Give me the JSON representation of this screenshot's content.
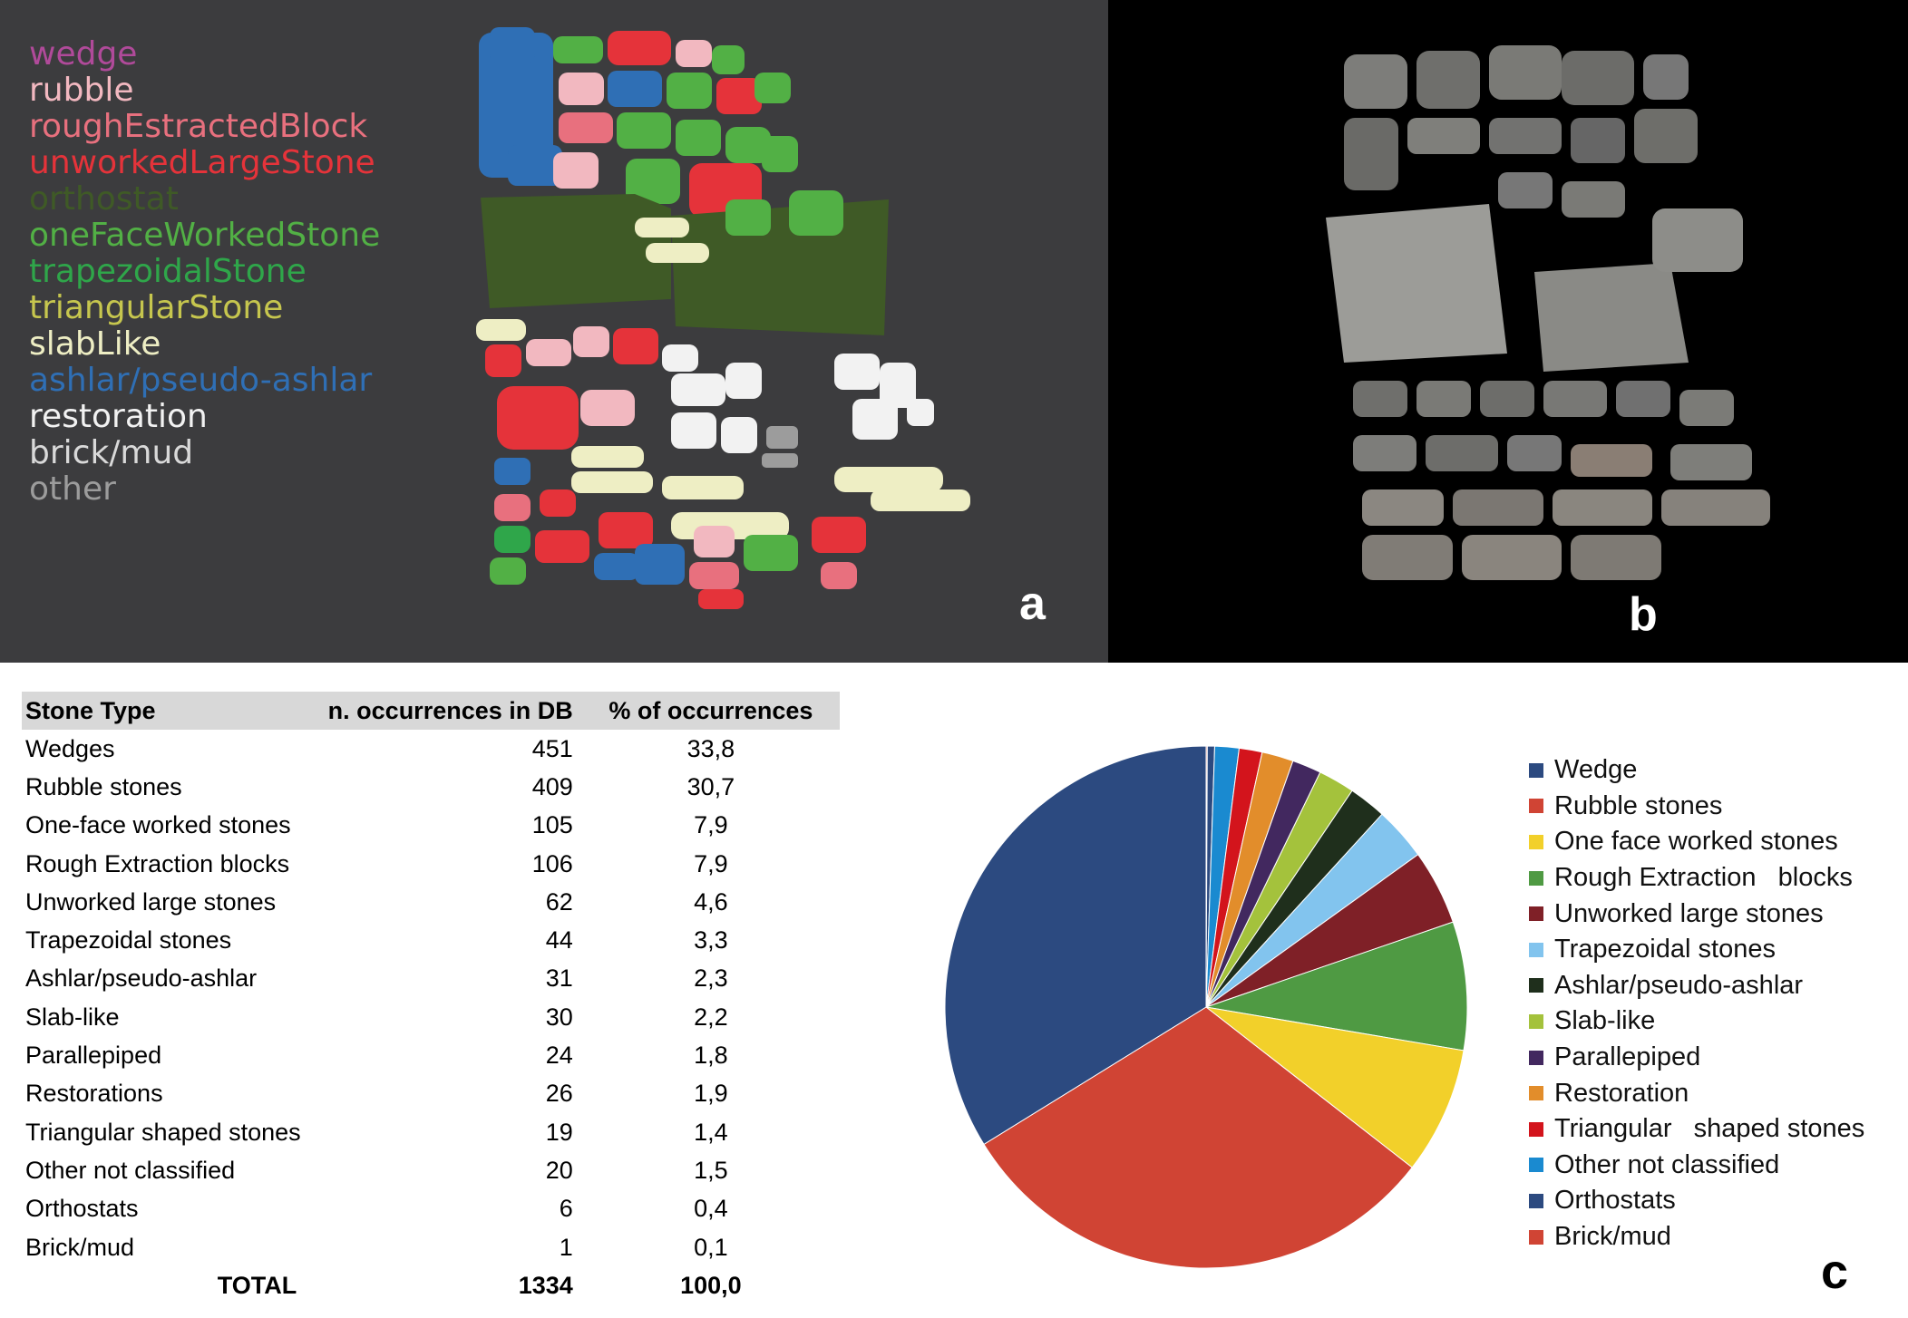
{
  "panels": {
    "a": "a",
    "b": "b",
    "c": "c"
  },
  "stone_legend": [
    {
      "label": "wedge",
      "color": "#b04a9a"
    },
    {
      "label": "rubble",
      "color": "#f2b8c0"
    },
    {
      "label": "roughEstractedBlock",
      "color": "#e8707e"
    },
    {
      "label": "unworkedLargeStone",
      "color": "#e5333a"
    },
    {
      "label": "orthostat",
      "color": "#3f5a26"
    },
    {
      "label": "oneFaceWorkedStone",
      "color": "#52b045"
    },
    {
      "label": "trapezoidalStone",
      "color": "#2fa64a"
    },
    {
      "label": "triangularStone",
      "color": "#c6c64e"
    },
    {
      "label": "slabLike",
      "color": "#eeeec4"
    },
    {
      "label": "ashlar/pseudo-ashlar",
      "color": "#2f6fb5"
    },
    {
      "label": "restoration",
      "color": "#f2f2f2"
    },
    {
      "label": "brick/mud",
      "color": "#d9d9d9"
    },
    {
      "label": "other",
      "color": "#9c9c9c"
    }
  ],
  "table": {
    "headers": [
      "Stone Type",
      "n. occurrences in DB",
      "% of occurrences"
    ],
    "rows": [
      [
        "Wedges",
        "451",
        "33,8"
      ],
      [
        "Rubble stones",
        "409",
        "30,7"
      ],
      [
        "One-face worked stones",
        "105",
        "7,9"
      ],
      [
        "Rough Extraction blocks",
        "106",
        "7,9"
      ],
      [
        "Unworked large stones",
        "62",
        "4,6"
      ],
      [
        "Trapezoidal stones",
        "44",
        "3,3"
      ],
      [
        "Ashlar/pseudo-ashlar",
        "31",
        "2,3"
      ],
      [
        "Slab-like",
        "30",
        "2,2"
      ],
      [
        "Parallepiped",
        "24",
        "1,8"
      ],
      [
        "Restorations",
        "26",
        "1,9"
      ],
      [
        "Triangular shaped stones",
        "19",
        "1,4"
      ],
      [
        "Other not classified",
        "20",
        "1,5"
      ],
      [
        "Orthostats",
        "6",
        "0,4"
      ],
      [
        "Brick/mud",
        "1",
        "0,1"
      ]
    ],
    "total": [
      "TOTAL",
      "1334",
      "100,0"
    ]
  },
  "chart_data": {
    "type": "pie",
    "title": "",
    "legend_position": "right",
    "categories": [
      "Wedge",
      "Rubble stones",
      "One face worked stones",
      "Rough Extraction blocks",
      "Unworked large stones",
      "Trapezoidal stones",
      "Ashlar/pseudo-ashlar",
      "Slab-like",
      "Parallepiped",
      "Restoration",
      "Triangular shaped stones",
      "Other not classified",
      "Orthostats",
      "Brick/mud"
    ],
    "legend_labels": [
      "Wedge",
      "Rubble stones",
      "One face worked stones",
      "Rough Extraction   blocks",
      "Unworked large stones",
      "Trapezoidal stones",
      "Ashlar/pseudo-ashlar",
      "Slab-like",
      "Parallepiped",
      "Restoration",
      "Triangular   shaped stones",
      "Other not classified",
      "Orthostats",
      "Brick/mud"
    ],
    "values": [
      451,
      409,
      105,
      106,
      62,
      44,
      31,
      30,
      24,
      26,
      19,
      20,
      6,
      1
    ],
    "colors": [
      "#2c4a80",
      "#d04434",
      "#f2d02a",
      "#4f9a43",
      "#7f2027",
      "#82c4ee",
      "#1f2f1c",
      "#a4c23c",
      "#42285f",
      "#e28d2b",
      "#d3141c",
      "#1a8ad0",
      "#2c4a80",
      "#d04434"
    ],
    "start_angle_deg": 0,
    "direction": "clockwise",
    "slice_order": [
      13,
      12,
      11,
      10,
      9,
      8,
      7,
      6,
      5,
      4,
      3,
      2,
      1,
      0
    ]
  }
}
